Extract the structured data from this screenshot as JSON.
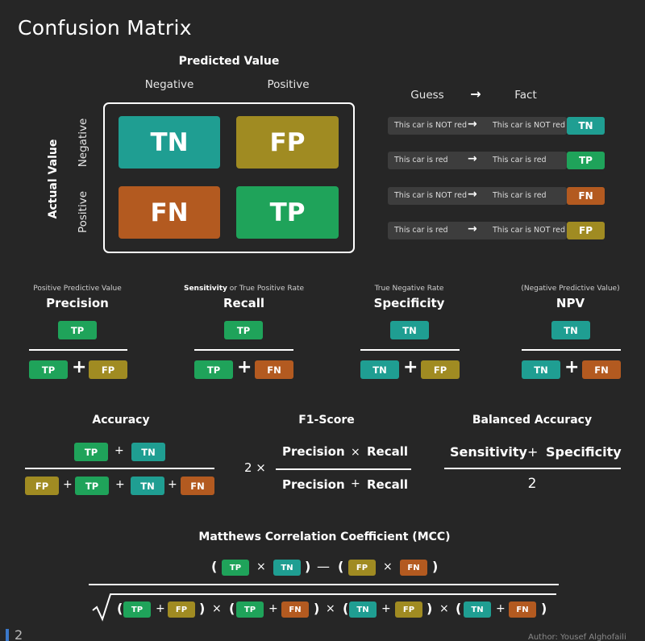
{
  "title": "Confusion Matrix",
  "matrix": {
    "predicted_label": "Predicted Value",
    "col_negative": "Negative",
    "col_positive": "Positive",
    "actual_label": "Actual Value",
    "row_negative": "Negative",
    "row_positive": "Positive",
    "tn": "TN",
    "fp": "FP",
    "fn": "FN",
    "tp": "TP"
  },
  "guess_fact": {
    "guess_header": "Guess",
    "arrow": "→",
    "fact_header": "Fact",
    "rows": [
      {
        "guess": "This car is NOT red",
        "fact": "This car is NOT red",
        "tag": "TN"
      },
      {
        "guess": "This car is red",
        "fact": "This car is red",
        "tag": "TP"
      },
      {
        "guess": "This car is NOT red",
        "fact": "This car is red",
        "tag": "FN"
      },
      {
        "guess": "This car is red",
        "fact": "This car is NOT red",
        "tag": "FP"
      }
    ]
  },
  "metrics": {
    "precision": {
      "subtitle": "Positive Predictive Value",
      "name": "Precision",
      "num": "TP",
      "den1": "TP",
      "den2": "FP"
    },
    "recall": {
      "subtitle_bold": "Sensitivity",
      "subtitle_rest": " or True Positive Rate",
      "name": "Recall",
      "num": "TP",
      "den1": "TP",
      "den2": "FN"
    },
    "specificity": {
      "subtitle": "True Negative Rate",
      "name": "Specificity",
      "num": "TN",
      "den1": "TN",
      "den2": "FP"
    },
    "npv": {
      "subtitle": "(Negative Predictive Value)",
      "name": "NPV",
      "num": "TN",
      "den1": "TN",
      "den2": "FN"
    }
  },
  "accuracy": {
    "name": "Accuracy",
    "num1": "TP",
    "num2": "TN",
    "den": [
      "FP",
      "TP",
      "TN",
      "FN"
    ],
    "plus": "+"
  },
  "f1": {
    "name": "F1-Score",
    "coef": "2 ×",
    "num_a": "Precision",
    "num_op": "×",
    "num_b": "Recall",
    "den_a": "Precision",
    "den_op": "+",
    "den_b": "Recall"
  },
  "balanced": {
    "name": "Balanced Accuracy",
    "num_a": "Sensitivity",
    "num_op": "+",
    "num_b": "Specificity",
    "den": "2"
  },
  "mcc": {
    "name": "Matthews Correlation Coefficient (MCC)",
    "top": [
      "TP",
      "TN",
      "FP",
      "FN"
    ],
    "times": "×",
    "minus": "—",
    "open": "(",
    "close": ")",
    "bottom": [
      [
        "TP",
        "FP"
      ],
      [
        "TP",
        "FN"
      ],
      [
        "TN",
        "FP"
      ],
      [
        "TN",
        "FN"
      ]
    ]
  },
  "footer": {
    "page": "2",
    "author": "Author: Yousef Alghofaili"
  }
}
